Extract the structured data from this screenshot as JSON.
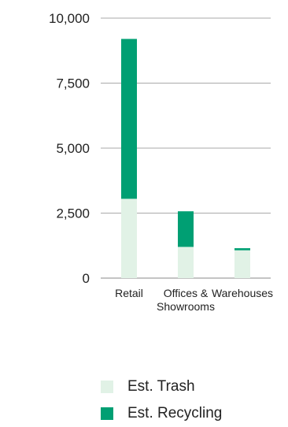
{
  "chart_data": {
    "type": "bar",
    "stacked": true,
    "categories": [
      "Retail",
      "Offices & Showrooms",
      "Warehouses"
    ],
    "category_lines": [
      [
        "Retail"
      ],
      [
        "Offices &",
        "Showrooms"
      ],
      [
        "Warehouses"
      ]
    ],
    "series": [
      {
        "name": "Est. Trash",
        "values": [
          3050,
          1200,
          1070
        ],
        "color": "#e1f2e6"
      },
      {
        "name": "Est. Recycling",
        "values": [
          6150,
          1370,
          80
        ],
        "color": "#009f73"
      }
    ],
    "ylim": [
      0,
      10000
    ],
    "y_ticks": [
      0,
      2500,
      5000,
      7500,
      10000
    ],
    "y_tick_labels": [
      "0",
      "2,500",
      "5,000",
      "7,500",
      "10,000"
    ],
    "grid": true,
    "legend_position": "bottom"
  }
}
